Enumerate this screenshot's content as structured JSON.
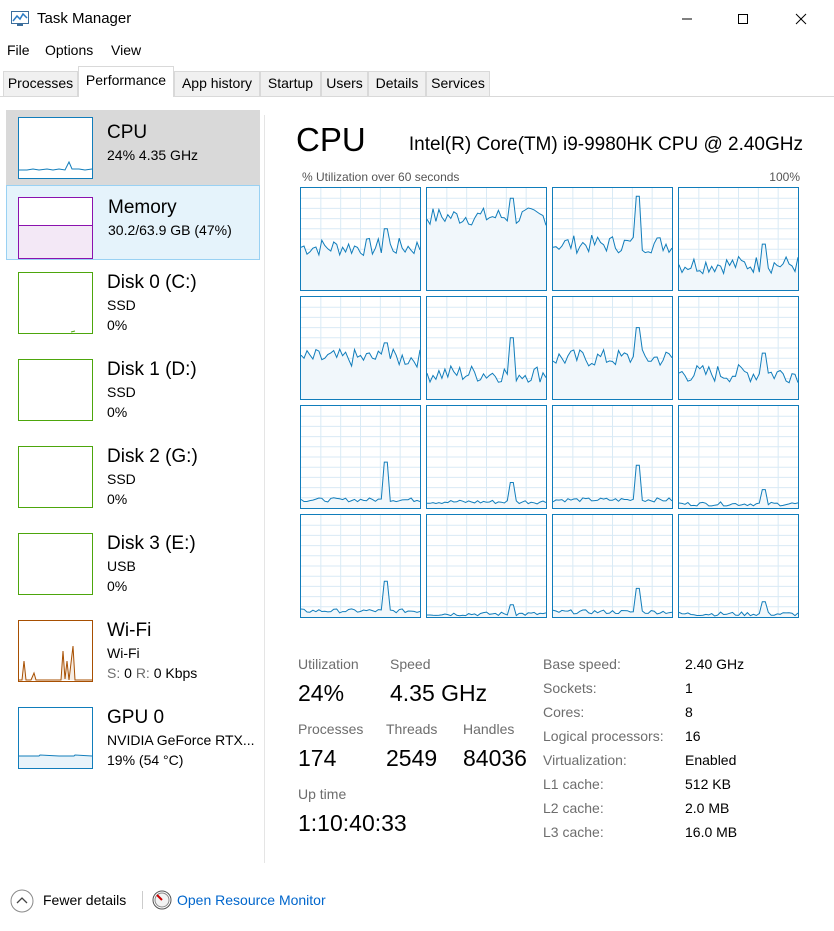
{
  "window": {
    "title": "Task Manager"
  },
  "menu": {
    "file": "File",
    "options": "Options",
    "view": "View"
  },
  "tabs": [
    {
      "label": "Processes"
    },
    {
      "label": "Performance"
    },
    {
      "label": "App history"
    },
    {
      "label": "Startup"
    },
    {
      "label": "Users"
    },
    {
      "label": "Details"
    },
    {
      "label": "Services"
    }
  ],
  "sidebar": {
    "cpu": {
      "name": "CPU",
      "sub": "24%  4.35 GHz"
    },
    "memory": {
      "name": "Memory",
      "sub": "30.2/63.9 GB (47%)"
    },
    "disk0": {
      "name": "Disk 0 (C:)",
      "type": "SSD",
      "pct": "0%"
    },
    "disk1": {
      "name": "Disk 1 (D:)",
      "type": "SSD",
      "pct": "0%"
    },
    "disk2": {
      "name": "Disk 2 (G:)",
      "type": "SSD",
      "pct": "0%"
    },
    "disk3": {
      "name": "Disk 3 (E:)",
      "type": "USB",
      "pct": "0%"
    },
    "wifi": {
      "name": "Wi-Fi",
      "type": "Wi-Fi",
      "s_label": "S:",
      "s_value": "0",
      "r_label": "R:",
      "r_value": "0 Kbps"
    },
    "gpu": {
      "name": "GPU 0",
      "model": "NVIDIA GeForce RTX...",
      "usage": "19% (54 °C)"
    }
  },
  "main": {
    "title": "CPU",
    "model": "Intel(R) Core(TM) i9-9980HK CPU @ 2.40GHz",
    "util_label": "% Utilization over 60 seconds",
    "max_label": "100%",
    "stats": {
      "utilization_label": "Utilization",
      "utilization": "24%",
      "speed_label": "Speed",
      "speed": "4.35 GHz",
      "processes_label": "Processes",
      "processes": "174",
      "threads_label": "Threads",
      "threads": "2549",
      "handles_label": "Handles",
      "handles": "84036",
      "uptime_label": "Up time",
      "uptime": "1:10:40:33"
    },
    "specs": [
      {
        "label": "Base speed:",
        "value": "2.40 GHz"
      },
      {
        "label": "Sockets:",
        "value": "1"
      },
      {
        "label": "Cores:",
        "value": "8"
      },
      {
        "label": "Logical processors:",
        "value": "16"
      },
      {
        "label": "Virtualization:",
        "value": "Enabled"
      },
      {
        "label": "L1 cache:",
        "value": "512 KB"
      },
      {
        "label": "L2 cache:",
        "value": "2.0 MB"
      },
      {
        "label": "L3 cache:",
        "value": "16.0 MB"
      }
    ]
  },
  "footer": {
    "fewer": "Fewer details",
    "monitor": "Open Resource Monitor"
  },
  "colors": {
    "cpu": "#117dbb",
    "memory": "#8b12ae",
    "disk": "#4da60c",
    "wifi": "#a74f01",
    "gpu": "#117dbb",
    "link": "#0066cc"
  }
}
